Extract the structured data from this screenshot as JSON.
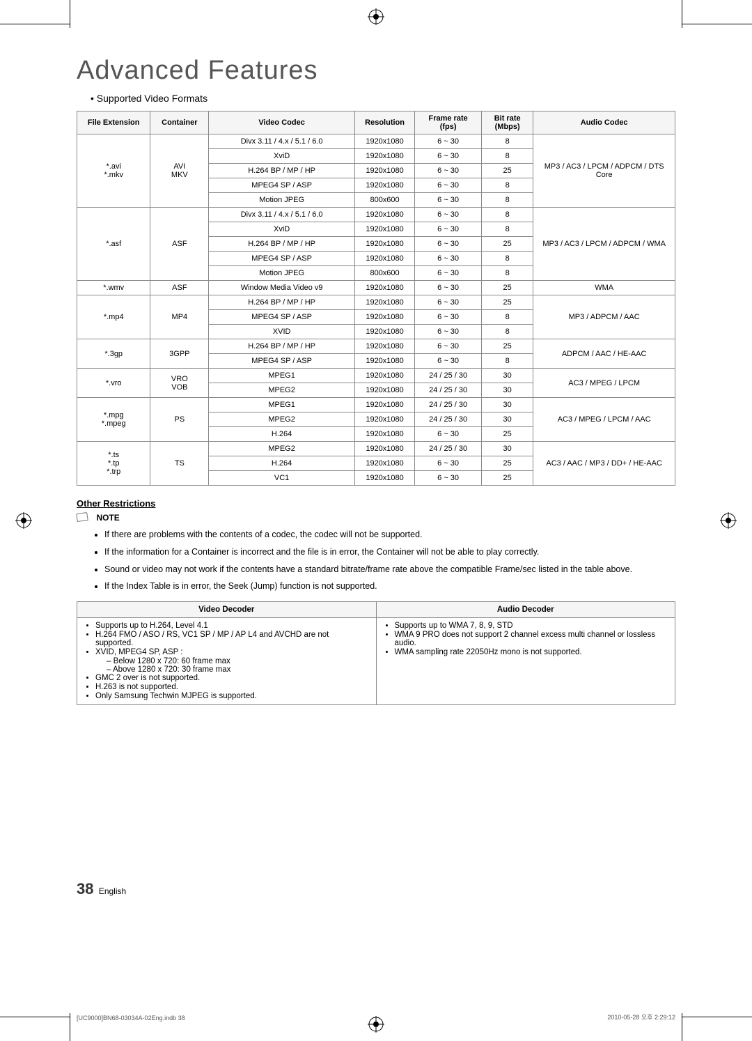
{
  "title": "Advanced Features",
  "section_header": "Supported Video Formats",
  "table": {
    "headers": [
      "File Extension",
      "Container",
      "Video Codec",
      "Resolution",
      "Frame rate (fps)",
      "Bit rate (Mbps)",
      "Audio Codec"
    ],
    "col_widths": [
      "88px",
      "70px",
      "175px",
      "72px",
      "80px",
      "62px",
      "170px"
    ]
  },
  "formats": [
    {
      "ext": "*.avi\n*.mkv",
      "container": "AVI\nMKV",
      "rows": [
        {
          "codec": "Divx 3.11 / 4.x / 5.1 / 6.0",
          "res": "1920x1080",
          "fps": "6 ~ 30",
          "br": "8"
        },
        {
          "codec": "XviD",
          "res": "1920x1080",
          "fps": "6 ~ 30",
          "br": "8"
        },
        {
          "codec": "H.264 BP / MP / HP",
          "res": "1920x1080",
          "fps": "6 ~ 30",
          "br": "25"
        },
        {
          "codec": "MPEG4 SP / ASP",
          "res": "1920x1080",
          "fps": "6 ~ 30",
          "br": "8"
        },
        {
          "codec": "Motion JPEG",
          "res": "800x600",
          "fps": "6 ~ 30",
          "br": "8"
        }
      ],
      "audio": "MP3 / AC3 / LPCM / ADPCM / DTS Core"
    },
    {
      "ext": "*.asf",
      "container": "ASF",
      "rows": [
        {
          "codec": "Divx 3.11 / 4.x / 5.1 / 6.0",
          "res": "1920x1080",
          "fps": "6 ~ 30",
          "br": "8"
        },
        {
          "codec": "XviD",
          "res": "1920x1080",
          "fps": "6 ~ 30",
          "br": "8"
        },
        {
          "codec": "H.264 BP / MP / HP",
          "res": "1920x1080",
          "fps": "6 ~ 30",
          "br": "25"
        },
        {
          "codec": "MPEG4 SP / ASP",
          "res": "1920x1080",
          "fps": "6 ~ 30",
          "br": "8"
        },
        {
          "codec": "Motion JPEG",
          "res": "800x600",
          "fps": "6 ~ 30",
          "br": "8"
        }
      ],
      "audio": "MP3 / AC3 / LPCM / ADPCM / WMA"
    },
    {
      "ext": "*.wmv",
      "container": "ASF",
      "rows": [
        {
          "codec": "Window Media Video v9",
          "res": "1920x1080",
          "fps": "6 ~ 30",
          "br": "25"
        }
      ],
      "audio": "WMA"
    },
    {
      "ext": "*.mp4",
      "container": "MP4",
      "rows": [
        {
          "codec": "H.264 BP / MP / HP",
          "res": "1920x1080",
          "fps": "6 ~ 30",
          "br": "25"
        },
        {
          "codec": "MPEG4 SP / ASP",
          "res": "1920x1080",
          "fps": "6 ~ 30",
          "br": "8"
        },
        {
          "codec": "XVID",
          "res": "1920x1080",
          "fps": "6 ~ 30",
          "br": "8"
        }
      ],
      "audio": "MP3 / ADPCM / AAC"
    },
    {
      "ext": "*.3gp",
      "container": "3GPP",
      "rows": [
        {
          "codec": "H.264 BP / MP / HP",
          "res": "1920x1080",
          "fps": "6 ~ 30",
          "br": "25"
        },
        {
          "codec": "MPEG4 SP / ASP",
          "res": "1920x1080",
          "fps": "6 ~ 30",
          "br": "8"
        }
      ],
      "audio": "ADPCM / AAC / HE-AAC"
    },
    {
      "ext": "*.vro",
      "container": "VRO\nVOB",
      "rows": [
        {
          "codec": "MPEG1",
          "res": "1920x1080",
          "fps": "24 / 25 / 30",
          "br": "30"
        },
        {
          "codec": "MPEG2",
          "res": "1920x1080",
          "fps": "24 / 25 / 30",
          "br": "30"
        }
      ],
      "audio": "AC3 / MPEG / LPCM"
    },
    {
      "ext": "*.mpg\n*.mpeg",
      "container": "PS",
      "rows": [
        {
          "codec": "MPEG1",
          "res": "1920x1080",
          "fps": "24 / 25 / 30",
          "br": "30"
        },
        {
          "codec": "MPEG2",
          "res": "1920x1080",
          "fps": "24 / 25 / 30",
          "br": "30"
        },
        {
          "codec": "H.264",
          "res": "1920x1080",
          "fps": "6 ~ 30",
          "br": "25"
        }
      ],
      "audio": "AC3 / MPEG / LPCM / AAC"
    },
    {
      "ext": "*.ts\n*.tp\n*.trp",
      "container": "TS",
      "rows": [
        {
          "codec": "MPEG2",
          "res": "1920x1080",
          "fps": "24 / 25 / 30",
          "br": "30"
        },
        {
          "codec": "H.264",
          "res": "1920x1080",
          "fps": "6 ~ 30",
          "br": "25"
        },
        {
          "codec": "VC1",
          "res": "1920x1080",
          "fps": "6 ~ 30",
          "br": "25"
        }
      ],
      "audio": "AC3 / AAC / MP3 / DD+ / HE-AAC"
    }
  ],
  "restrictions_title": "Other Restrictions",
  "note_label": "NOTE",
  "notes": [
    "If there are problems with the contents of a codec, the codec will not be supported.",
    "If the information for a Container is incorrect and the file is in error, the Container will not be able to play correctly.",
    "Sound or video may not work if the contents have a standard bitrate/frame rate above the compatible Frame/sec listed in the table above.",
    "If the Index Table is in error, the Seek (Jump) function is not supported."
  ],
  "decoder": {
    "video_header": "Video Decoder",
    "audio_header": "Audio Decoder",
    "video": [
      "Supports up to H.264, Level 4.1",
      "H.264 FMO / ASO / RS, VC1 SP / MP / AP L4 and AVCHD are not supported.",
      "XVID, MPEG4 SP, ASP :",
      "– Below 1280 x 720: 60 frame max",
      "– Above 1280 x 720: 30 frame max",
      "GMC 2 over is not supported.",
      "H.263 is not supported.",
      "Only Samsung Techwin MJPEG is supported."
    ],
    "audio": [
      "Supports up to WMA 7, 8, 9, STD",
      "WMA 9 PRO does not support 2 channel excess multi channel or lossless audio.",
      "WMA sampling rate 22050Hz mono is not supported."
    ]
  },
  "page_number": "38",
  "page_lang": "English",
  "footer_left": "[UC9000]BN68-03034A-02Eng.indb   38",
  "footer_right": "2010-05-28   오후 2:29:12"
}
